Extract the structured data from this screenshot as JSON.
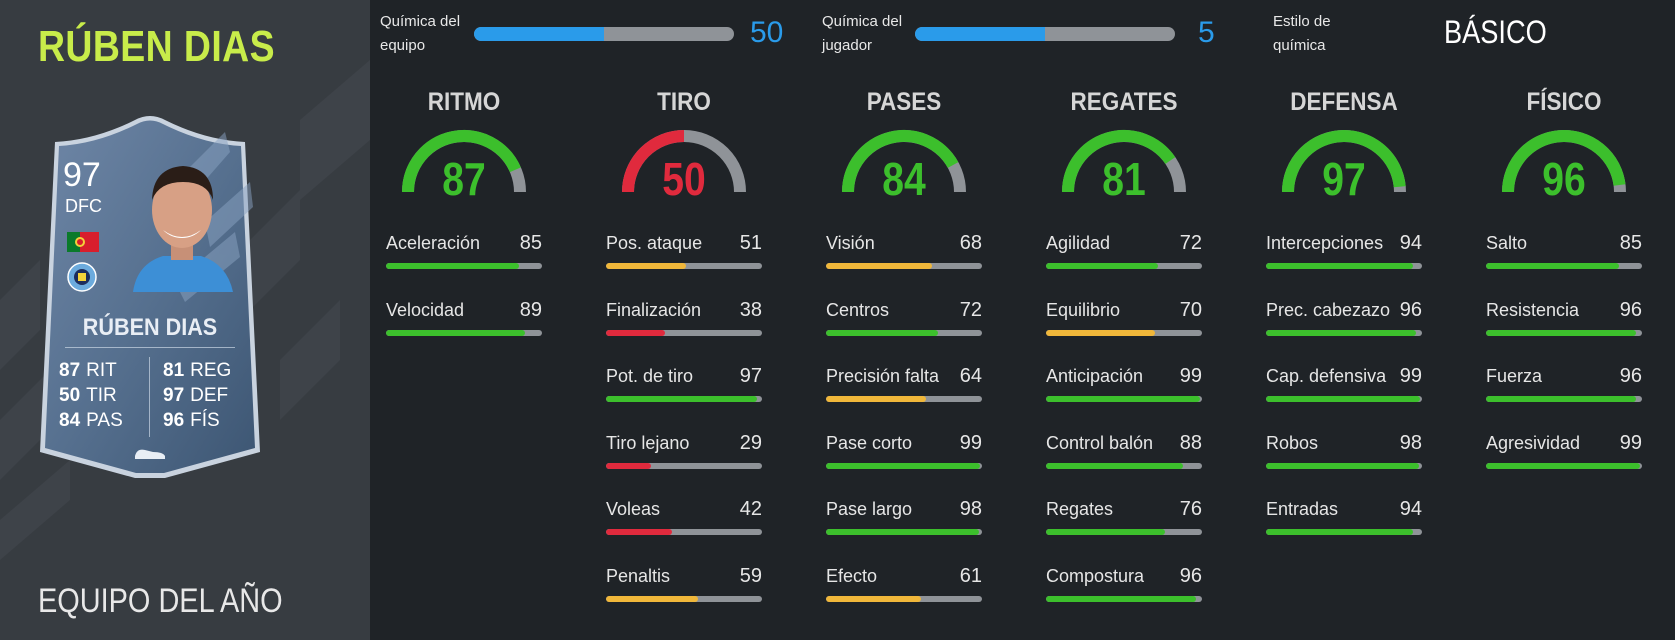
{
  "player": {
    "name_title": "RÚBEN DIAS",
    "version": "EQUIPO DEL AÑO",
    "card": {
      "rating": "97",
      "position": "DFC",
      "name": "RÚBEN DIAS",
      "nation_flag": "portugal-flag",
      "club_crest": "man-city-crest",
      "stats_left": [
        {
          "value": "87",
          "abbr": "RIT"
        },
        {
          "value": "50",
          "abbr": "TIR"
        },
        {
          "value": "84",
          "abbr": "PAS"
        }
      ],
      "stats_right": [
        {
          "value": "81",
          "abbr": "REG"
        },
        {
          "value": "97",
          "abbr": "DEF"
        },
        {
          "value": "96",
          "abbr": "FÍS"
        }
      ]
    }
  },
  "chemistry": {
    "team": {
      "label": "Química del equipo",
      "value": "50",
      "fraction": 0.5
    },
    "player": {
      "label": "Química del jugador",
      "value": "5",
      "fraction": 0.5
    },
    "style": {
      "label": "Estilo de química",
      "value": "BÁSICO"
    }
  },
  "colors": {
    "green": "#3cbf2c",
    "yellow": "#f0b73a",
    "red": "#e02a3d",
    "blue": "#2a9bea",
    "grey": "#8f9398",
    "title_green": "#c8ec4a"
  },
  "categories": [
    {
      "title": "RITMO",
      "value": "87",
      "color": "green",
      "stats": [
        {
          "label": "Aceleración",
          "value": "85",
          "color": "green"
        },
        {
          "label": "Velocidad",
          "value": "89",
          "color": "green"
        }
      ]
    },
    {
      "title": "TIRO",
      "value": "50",
      "color": "red",
      "stats": [
        {
          "label": "Pos. ataque",
          "value": "51",
          "color": "yellow"
        },
        {
          "label": "Finalización",
          "value": "38",
          "color": "red"
        },
        {
          "label": "Pot. de tiro",
          "value": "97",
          "color": "green"
        },
        {
          "label": "Tiro lejano",
          "value": "29",
          "color": "red"
        },
        {
          "label": "Voleas",
          "value": "42",
          "color": "red"
        },
        {
          "label": "Penaltis",
          "value": "59",
          "color": "yellow"
        }
      ]
    },
    {
      "title": "PASES",
      "value": "84",
      "color": "green",
      "stats": [
        {
          "label": "Visión",
          "value": "68",
          "color": "yellow"
        },
        {
          "label": "Centros",
          "value": "72",
          "color": "green"
        },
        {
          "label": "Precisión falta",
          "value": "64",
          "color": "yellow"
        },
        {
          "label": "Pase corto",
          "value": "99",
          "color": "green"
        },
        {
          "label": "Pase largo",
          "value": "98",
          "color": "green"
        },
        {
          "label": "Efecto",
          "value": "61",
          "color": "yellow"
        }
      ]
    },
    {
      "title": "REGATES",
      "value": "81",
      "color": "green",
      "stats": [
        {
          "label": "Agilidad",
          "value": "72",
          "color": "green"
        },
        {
          "label": "Equilibrio",
          "value": "70",
          "color": "yellow"
        },
        {
          "label": "Anticipación",
          "value": "99",
          "color": "green"
        },
        {
          "label": "Control balón",
          "value": "88",
          "color": "green"
        },
        {
          "label": "Regates",
          "value": "76",
          "color": "green"
        },
        {
          "label": "Compostura",
          "value": "96",
          "color": "green"
        }
      ]
    },
    {
      "title": "DEFENSA",
      "value": "97",
      "color": "green",
      "stats": [
        {
          "label": "Intercepciones",
          "value": "94",
          "color": "green"
        },
        {
          "label": "Prec. cabezazo",
          "value": "96",
          "color": "green"
        },
        {
          "label": "Cap. defensiva",
          "value": "99",
          "color": "green"
        },
        {
          "label": "Robos",
          "value": "98",
          "color": "green"
        },
        {
          "label": "Entradas",
          "value": "94",
          "color": "green"
        }
      ]
    },
    {
      "title": "FÍSICO",
      "value": "96",
      "color": "green",
      "stats": [
        {
          "label": "Salto",
          "value": "85",
          "color": "green"
        },
        {
          "label": "Resistencia",
          "value": "96",
          "color": "green"
        },
        {
          "label": "Fuerza",
          "value": "96",
          "color": "green"
        },
        {
          "label": "Agresividad",
          "value": "99",
          "color": "green"
        }
      ]
    }
  ]
}
